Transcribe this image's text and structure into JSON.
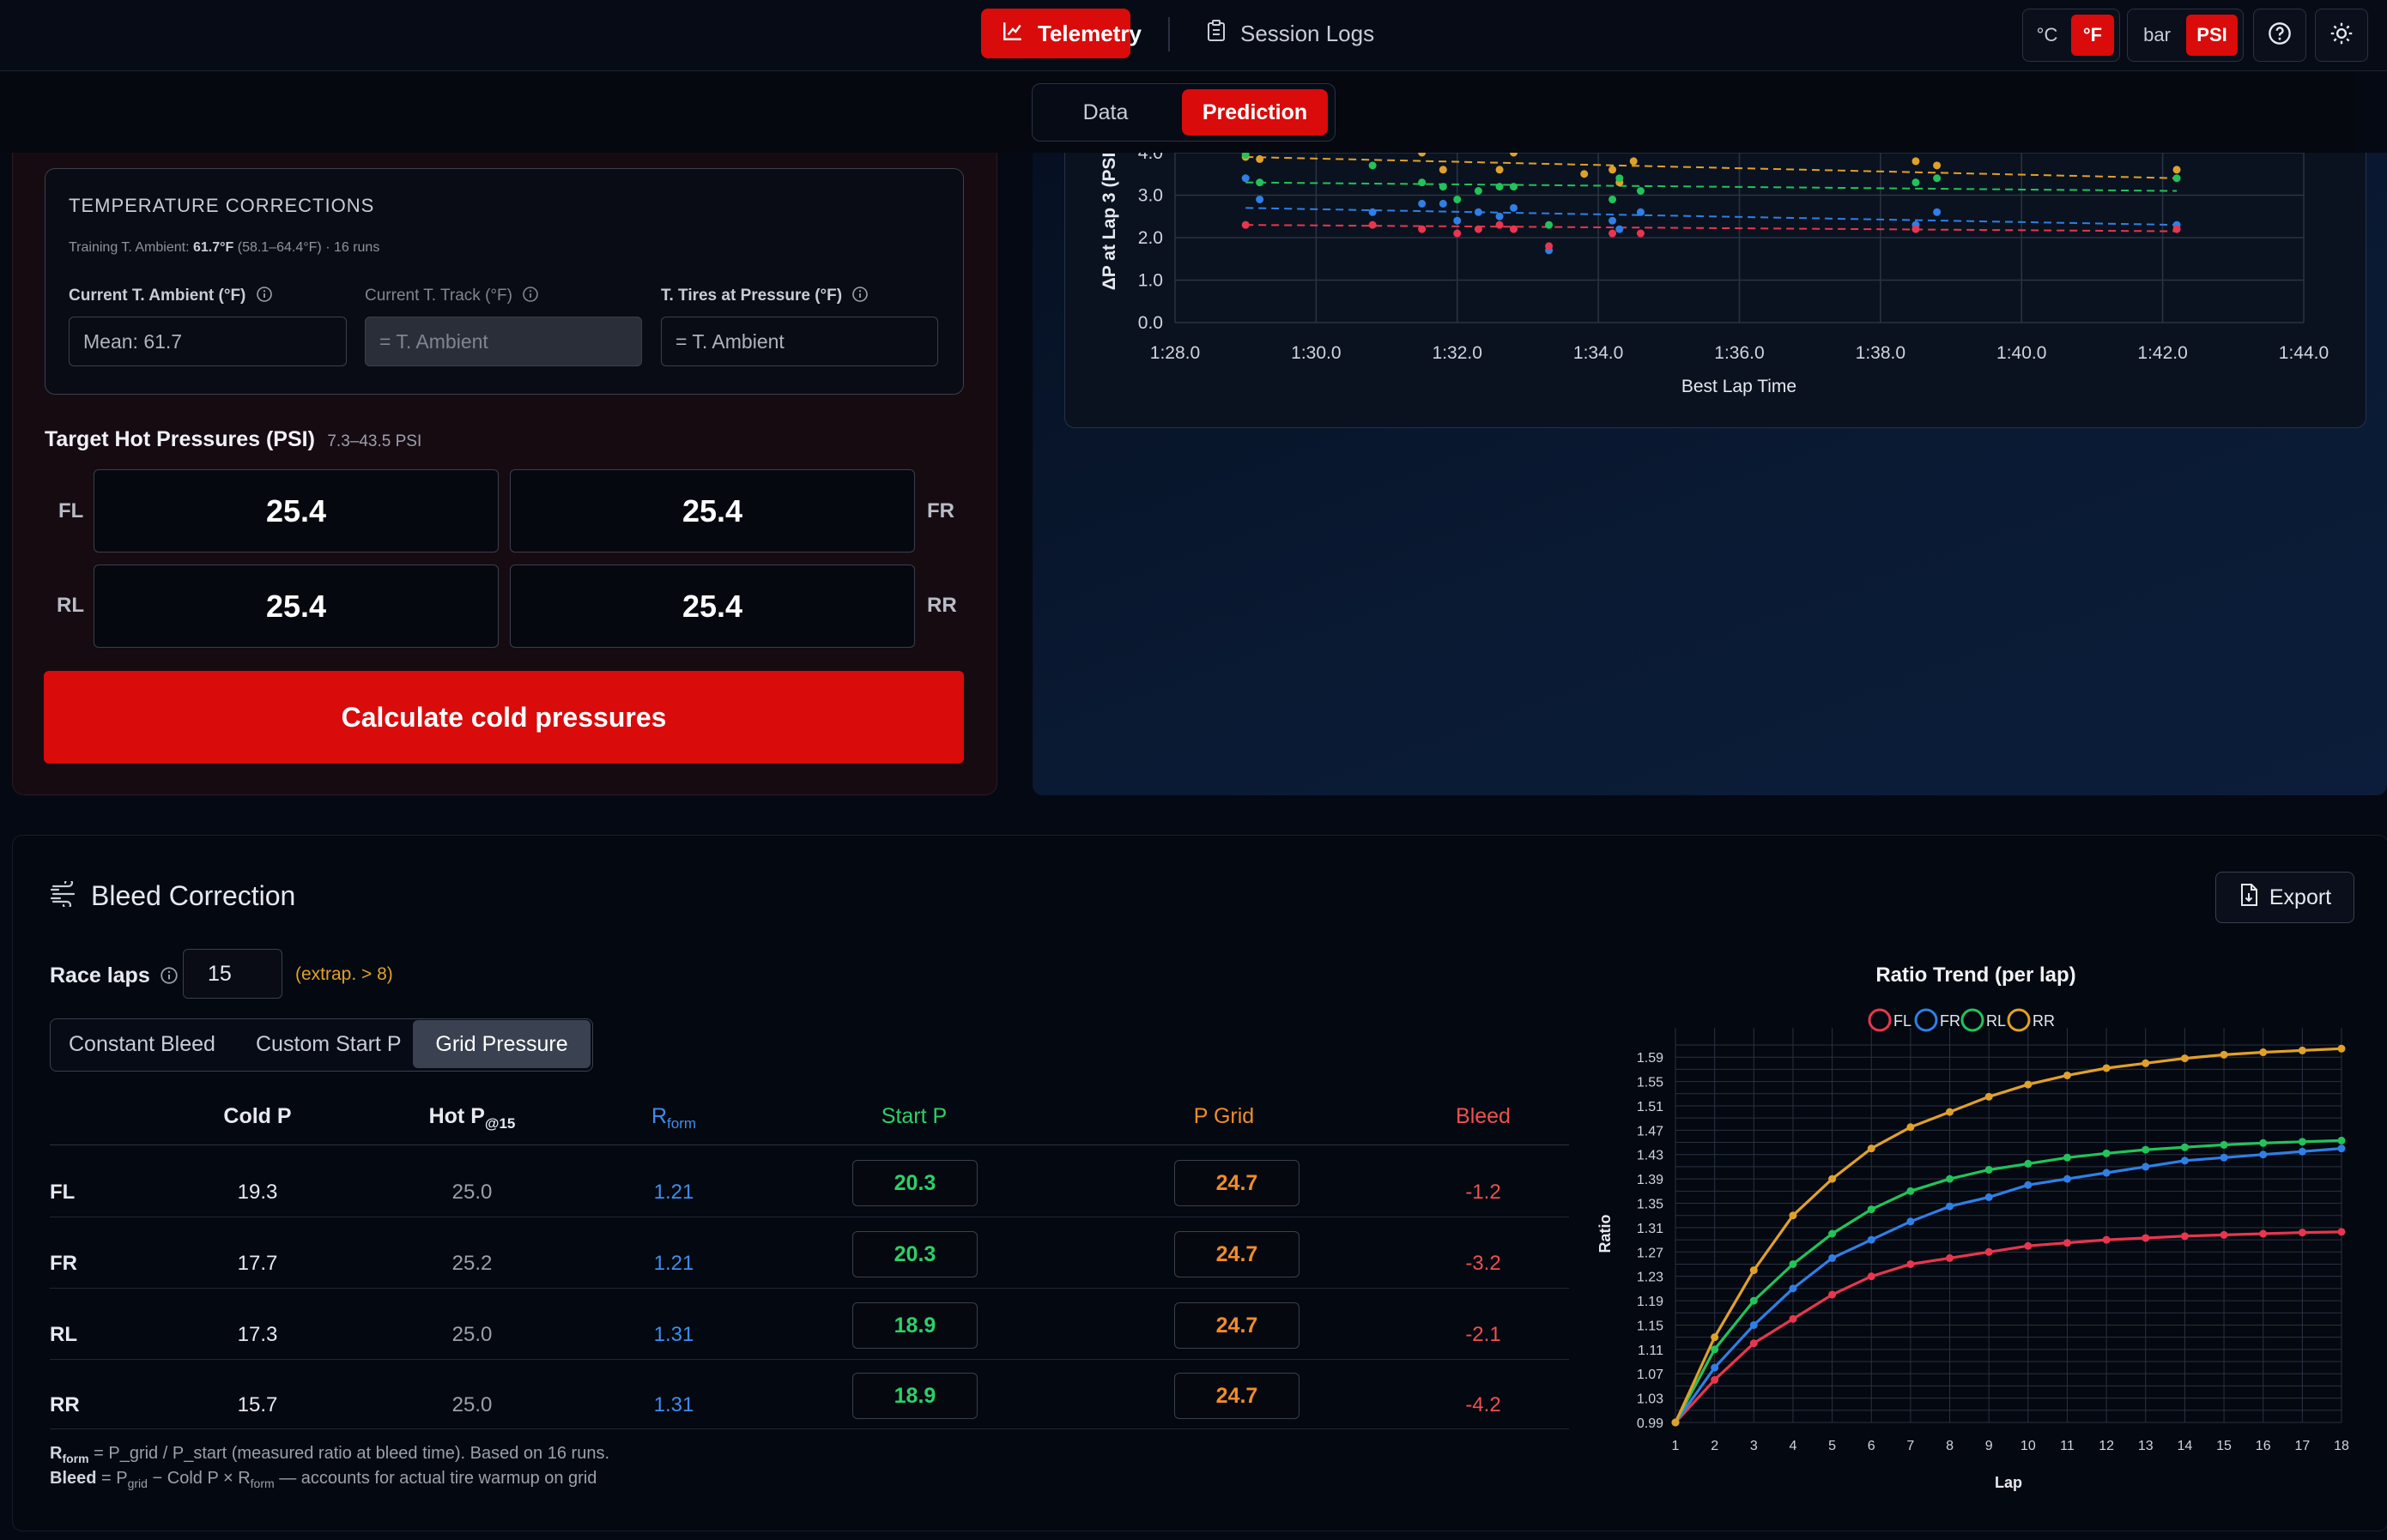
{
  "nav": {
    "telemetry_label": "Telemetry",
    "session_logs_label": "Session Logs",
    "temp_units": [
      "°C",
      "°F"
    ],
    "pressure_units": [
      "bar",
      "PSI"
    ]
  },
  "subtabs": {
    "data_label": "Data",
    "prediction_label": "Prediction"
  },
  "temperature_corrections": {
    "title": "TEMPERATURE CORRECTIONS",
    "training_label": "Training T. Ambient:",
    "training_value": "61.7°F",
    "training_range": "(58.1–64.4°F) · 16 runs",
    "ambient_label": "Current T. Ambient (°F)",
    "ambient_value": "Mean: 61.7",
    "track_label": "Current T. Track (°F)",
    "track_value": "= T. Ambient",
    "tires_label": "T. Tires at Pressure (°F)",
    "tires_value": "= T. Ambient"
  },
  "target": {
    "title": "Target Hot Pressures (PSI)",
    "range": "7.3–43.5 PSI",
    "fl_label": "FL",
    "fr_label": "FR",
    "rl_label": "RL",
    "rr_label": "RR",
    "fl": "25.4",
    "fr": "25.4",
    "rl": "25.4",
    "rr": "25.4"
  },
  "calculate_label": "Calculate cold pressures",
  "scatter": {
    "ylabel": "ΔP at Lap 3 (PSI",
    "xlabel": "Best Lap Time",
    "xticks": [
      "1:28.0",
      "1:30.0",
      "1:32.0",
      "1:34.0",
      "1:36.0",
      "1:38.0",
      "1:40.0",
      "1:42.0",
      "1:44.0"
    ],
    "yticks": [
      "4.0",
      "3.0",
      "2.0",
      "1.0",
      "0.0"
    ]
  },
  "bleed": {
    "title": "Bleed Correction",
    "export_label": "Export",
    "race_laps_label": "Race laps",
    "race_laps_value": "15",
    "extrap_note": "(extrap. > 8)",
    "modes": [
      "Constant Bleed",
      "Custom Start P",
      "Grid Pressure"
    ],
    "headers": {
      "cold": "Cold P",
      "hot": "Hot P",
      "hot_sub": "@15",
      "rform": "R",
      "rform_sub": "form",
      "start": "Start P",
      "grid": "P Grid",
      "bleed": "Bleed"
    },
    "rows": [
      {
        "tire": "FL",
        "cold": "19.3",
        "hot": "25.0",
        "rform": "1.21",
        "start": "20.3",
        "grid": "24.7",
        "bleed": "-1.2"
      },
      {
        "tire": "FR",
        "cold": "17.7",
        "hot": "25.2",
        "rform": "1.21",
        "start": "20.3",
        "grid": "24.7",
        "bleed": "-3.2"
      },
      {
        "tire": "RL",
        "cold": "17.3",
        "hot": "25.0",
        "rform": "1.31",
        "start": "18.9",
        "grid": "24.7",
        "bleed": "-2.1"
      },
      {
        "tire": "RR",
        "cold": "15.7",
        "hot": "25.0",
        "rform": "1.31",
        "start": "18.9",
        "grid": "24.7",
        "bleed": "-4.2"
      }
    ],
    "note1_r": "R",
    "note1_sub": "form",
    "note1_text": " = P_grid / P_start (measured ratio at bleed time). Based on 16 runs.",
    "note2_b": "Bleed",
    "note2_a": " = P",
    "note2_sub1": "grid",
    "note2_c": " − Cold P × R",
    "note2_sub2": "form",
    "note2_d": " — accounts for actual tire warmup on grid"
  },
  "colors": {
    "fl": "#e8364f",
    "fr": "#2f7fe6",
    "rl": "#22c35a",
    "rr": "#e0a12a",
    "accent": "#d90b0b"
  },
  "chart_data": {
    "type": "line",
    "title": "Ratio Trend (per lap)",
    "xlabel": "Lap",
    "ylabel": "Ratio",
    "x": [
      1,
      2,
      3,
      4,
      5,
      6,
      7,
      8,
      9,
      10,
      11,
      12,
      13,
      14,
      15,
      16,
      17,
      18
    ],
    "ylim": [
      0.99,
      1.61
    ],
    "yticks": [
      0.99,
      1.03,
      1.07,
      1.11,
      1.15,
      1.19,
      1.23,
      1.27,
      1.31,
      1.35,
      1.39,
      1.43,
      1.47,
      1.51,
      1.55,
      1.59
    ],
    "legend": "top",
    "series": [
      {
        "name": "FL",
        "color": "#e8364f",
        "values": [
          0.99,
          1.06,
          1.12,
          1.16,
          1.2,
          1.23,
          1.25,
          1.26,
          1.27,
          1.28,
          1.285,
          1.29,
          1.293,
          1.296,
          1.298,
          1.3,
          1.302,
          1.303
        ]
      },
      {
        "name": "FR",
        "color": "#2f7fe6",
        "values": [
          0.99,
          1.08,
          1.15,
          1.21,
          1.26,
          1.29,
          1.32,
          1.345,
          1.36,
          1.38,
          1.39,
          1.4,
          1.41,
          1.42,
          1.425,
          1.43,
          1.435,
          1.44
        ]
      },
      {
        "name": "RL",
        "color": "#22c35a",
        "values": [
          0.99,
          1.11,
          1.19,
          1.25,
          1.3,
          1.34,
          1.37,
          1.39,
          1.405,
          1.415,
          1.425,
          1.432,
          1.438,
          1.442,
          1.446,
          1.449,
          1.451,
          1.453
        ]
      },
      {
        "name": "RR",
        "color": "#e0a12a",
        "values": [
          0.99,
          1.13,
          1.24,
          1.33,
          1.39,
          1.44,
          1.475,
          1.5,
          1.525,
          1.545,
          1.56,
          1.572,
          1.58,
          1.588,
          1.594,
          1.598,
          1.601,
          1.604
        ]
      }
    ]
  }
}
